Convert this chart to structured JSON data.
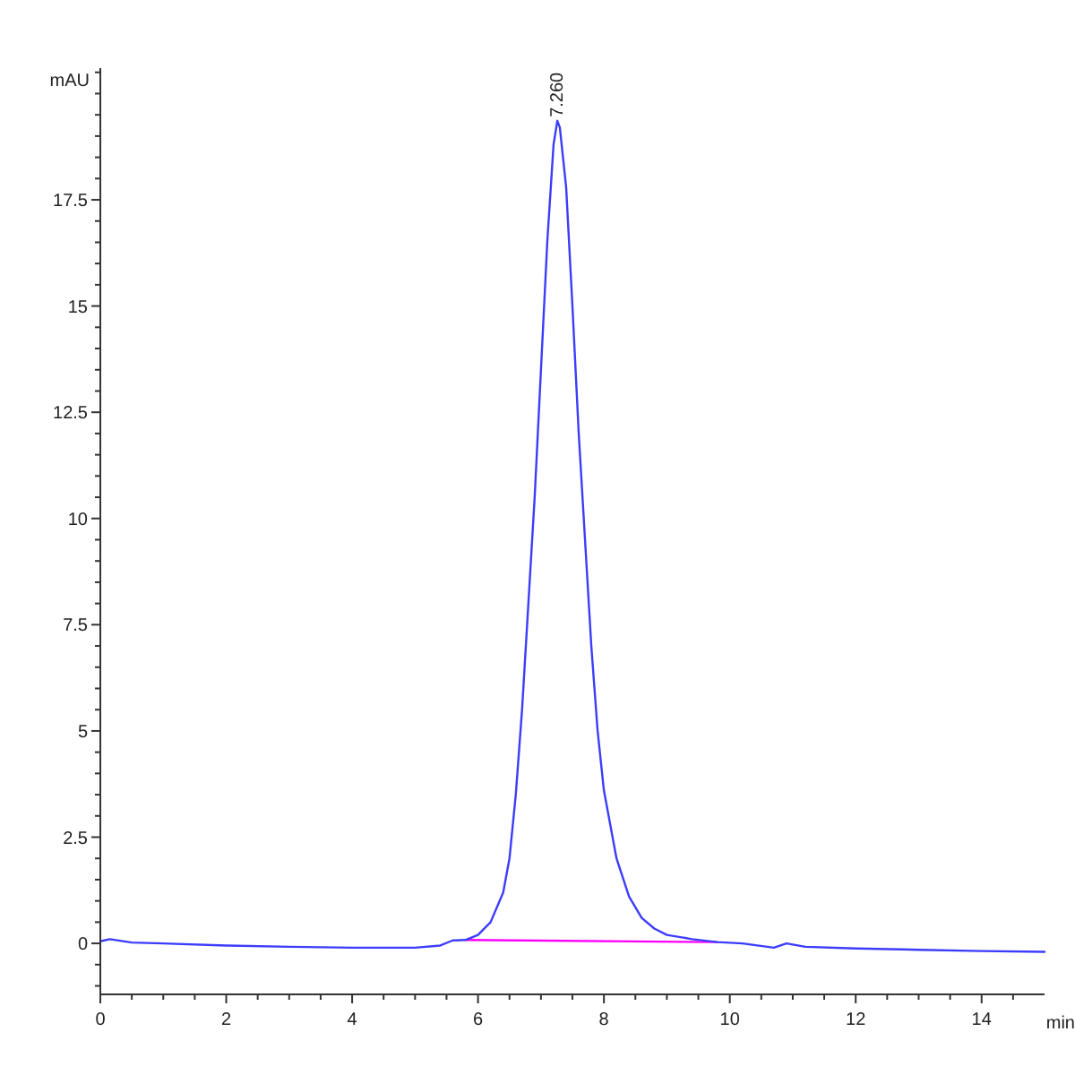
{
  "chart_data": {
    "type": "line",
    "xlabel": "min",
    "ylabel": "mAU",
    "xlim": [
      0,
      15
    ],
    "ylim": [
      -1.2,
      20.6
    ],
    "xticks": [
      0,
      {
        "value": 0.5,
        "label": null
      },
      {
        "value": 1,
        "label": null
      },
      {
        "value": 1.5,
        "label": null
      },
      2,
      {
        "value": 2.5,
        "label": null
      },
      {
        "value": 3,
        "label": null
      },
      {
        "value": 3.5,
        "label": null
      },
      4,
      {
        "value": 4.5,
        "label": null
      },
      {
        "value": 5,
        "label": null
      },
      {
        "value": 5.5,
        "label": null
      },
      6,
      {
        "value": 6.5,
        "label": null
      },
      {
        "value": 7,
        "label": null
      },
      {
        "value": 7.5,
        "label": null
      },
      8,
      {
        "value": 8.5,
        "label": null
      },
      {
        "value": 9,
        "label": null
      },
      {
        "value": 9.5,
        "label": null
      },
      10,
      {
        "value": 10.5,
        "label": null
      },
      {
        "value": 11,
        "label": null
      },
      {
        "value": 11.5,
        "label": null
      },
      12,
      {
        "value": 12.5,
        "label": null
      },
      {
        "value": 13,
        "label": null
      },
      {
        "value": 13.5,
        "label": null
      },
      14,
      {
        "value": 14.5,
        "label": null
      }
    ],
    "yticks": [
      {
        "value": -1,
        "label": null
      },
      {
        "value": -0.5,
        "label": null
      },
      0,
      {
        "value": 0.5,
        "label": null
      },
      {
        "value": 1,
        "label": null
      },
      {
        "value": 1.5,
        "label": null
      },
      {
        "value": 2,
        "label": null
      },
      2.5,
      {
        "value": 3,
        "label": null
      },
      {
        "value": 3.5,
        "label": null
      },
      {
        "value": 4,
        "label": null
      },
      {
        "value": 4.5,
        "label": null
      },
      5,
      {
        "value": 5.5,
        "label": null
      },
      {
        "value": 6,
        "label": null
      },
      {
        "value": 6.5,
        "label": null
      },
      {
        "value": 7,
        "label": null
      },
      7.5,
      {
        "value": 8,
        "label": null
      },
      {
        "value": 8.5,
        "label": null
      },
      {
        "value": 9,
        "label": null
      },
      {
        "value": 9.5,
        "label": null
      },
      10,
      {
        "value": 10.5,
        "label": null
      },
      {
        "value": 11,
        "label": null
      },
      {
        "value": 11.5,
        "label": null
      },
      {
        "value": 12,
        "label": null
      },
      12.5,
      {
        "value": 13,
        "label": null
      },
      {
        "value": 13.5,
        "label": null
      },
      {
        "value": 14,
        "label": null
      },
      {
        "value": 14.5,
        "label": null
      },
      15,
      {
        "value": 15.5,
        "label": null
      },
      {
        "value": 16,
        "label": null
      },
      {
        "value": 16.5,
        "label": null
      },
      {
        "value": 17,
        "label": null
      },
      17.5,
      {
        "value": 18,
        "label": null
      },
      {
        "value": 18.5,
        "label": null
      },
      {
        "value": 19,
        "label": null
      },
      {
        "value": 19.5,
        "label": null
      },
      {
        "value": 20,
        "label": null
      },
      {
        "value": 20.5,
        "label": null
      }
    ],
    "grid": false,
    "marker": "none",
    "line_style": "solid",
    "series": [
      {
        "color": "#ff00ff",
        "x": [
          5.8,
          9.8
        ],
        "values": [
          0.08,
          0.03
        ]
      },
      {
        "color": "#3c3cff",
        "x": [
          0,
          0.15,
          0.5,
          1,
          2,
          3,
          4,
          5,
          5.4,
          5.6,
          5.8,
          6.0,
          6.2,
          6.4,
          6.5,
          6.6,
          6.7,
          6.8,
          6.9,
          7.0,
          7.1,
          7.2,
          7.26,
          7.3,
          7.4,
          7.5,
          7.6,
          7.7,
          7.8,
          7.9,
          8.0,
          8.2,
          8.4,
          8.6,
          8.8,
          9.0,
          9.4,
          9.8,
          10.2,
          10.7,
          10.9,
          11.2,
          12,
          13,
          14,
          15
        ],
        "values": [
          0.05,
          0.1,
          0.02,
          0,
          -0.05,
          -0.08,
          -0.1,
          -0.1,
          -0.05,
          0.07,
          0.08,
          0.2,
          0.5,
          1.2,
          2.0,
          3.5,
          5.5,
          8,
          10.5,
          13.5,
          16.5,
          18.8,
          19.36,
          19.2,
          17.8,
          15,
          12,
          9.5,
          7,
          5,
          3.6,
          2.0,
          1.1,
          0.6,
          0.35,
          0.2,
          0.1,
          0.03,
          0,
          -0.1,
          0,
          -0.08,
          -0.12,
          -0.15,
          -0.18,
          -0.2
        ]
      }
    ],
    "annotations": [
      {
        "text": "7.260",
        "x": 7.26,
        "y": 19.36
      }
    ]
  }
}
